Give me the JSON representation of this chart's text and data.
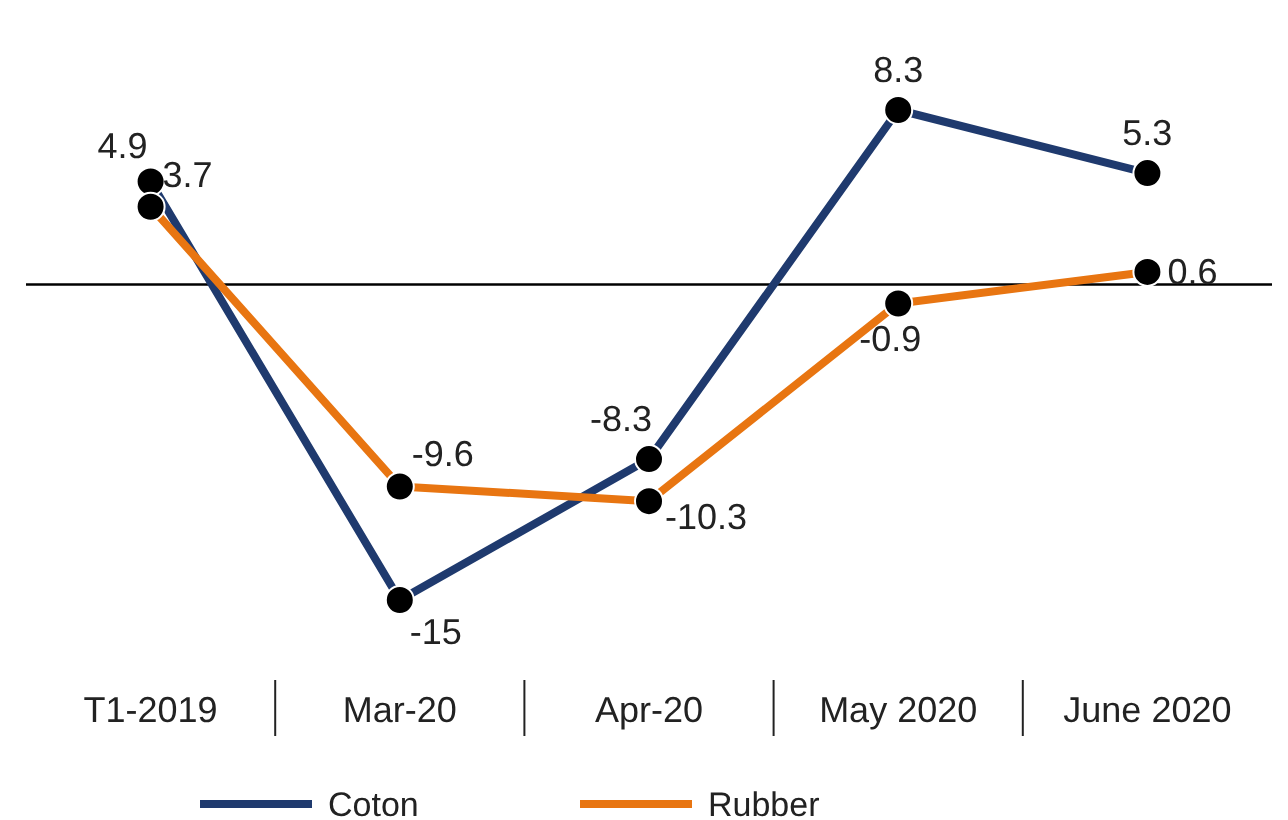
{
  "chart_data": {
    "type": "line",
    "categories": [
      "T1-2019",
      "Mar-20",
      "Apr-20",
      "May 2020",
      "June 2020"
    ],
    "series": [
      {
        "name": "Coton",
        "color": "#1f3a6e",
        "values": [
          4.9,
          -15,
          -8.3,
          8.3,
          5.3
        ]
      },
      {
        "name": "Rubber",
        "color": "#e87511",
        "values": [
          3.7,
          -9.6,
          -10.3,
          -0.9,
          0.6
        ]
      }
    ],
    "data_labels": true,
    "marker": "circle",
    "line_style": "solid",
    "legend": "bottom"
  }
}
